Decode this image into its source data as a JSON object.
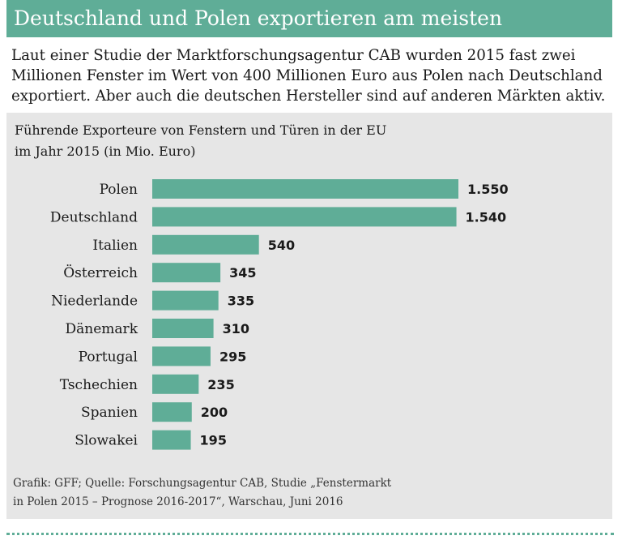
{
  "header": {
    "title": "Deutschland und Polen exportieren am meisten"
  },
  "intro": {
    "lines": [
      "Laut einer Studie der Marktforschungsagentur CAB wurden 2015 fast zwei",
      "Millionen Fenster im Wert von 400 Millionen Euro aus Polen nach Deutschland",
      "exportiert. Aber auch die deutschen Hersteller sind auf anderen Märkten aktiv."
    ]
  },
  "chart_data": {
    "type": "bar",
    "orientation": "horizontal",
    "title": "Führende Exporteure von Fenstern und Türen in der EU im Jahr 2015 (in Mio. Euro)",
    "title_lines": [
      "Führende Exporteure von Fenstern und Türen in der EU",
      "im Jahr 2015 (in Mio. Euro)"
    ],
    "categories": [
      "Polen",
      "Deutschland",
      "Italien",
      "Österreich",
      "Niederlande",
      "Dänemark",
      "Portugal",
      "Tschechien",
      "Spanien",
      "Slowakei"
    ],
    "values": [
      1550,
      1540,
      540,
      345,
      335,
      310,
      295,
      235,
      200,
      195
    ],
    "value_labels": [
      "1.550",
      "1.540",
      "540",
      "345",
      "335",
      "310",
      "295",
      "235",
      "200",
      "195"
    ],
    "xlim": [
      0,
      1550
    ],
    "grid": false,
    "bar_color": "#5fad97"
  },
  "source": {
    "lines": [
      "Grafik: GFF; Quelle: Forschungsagentur CAB, Studie „Fenstermarkt",
      "in Polen 2015 – Prognose 2016-2017“, Warschau, Juni  2016"
    ]
  },
  "colors": {
    "accent": "#5fad97",
    "panel": "#e6e6e6"
  }
}
